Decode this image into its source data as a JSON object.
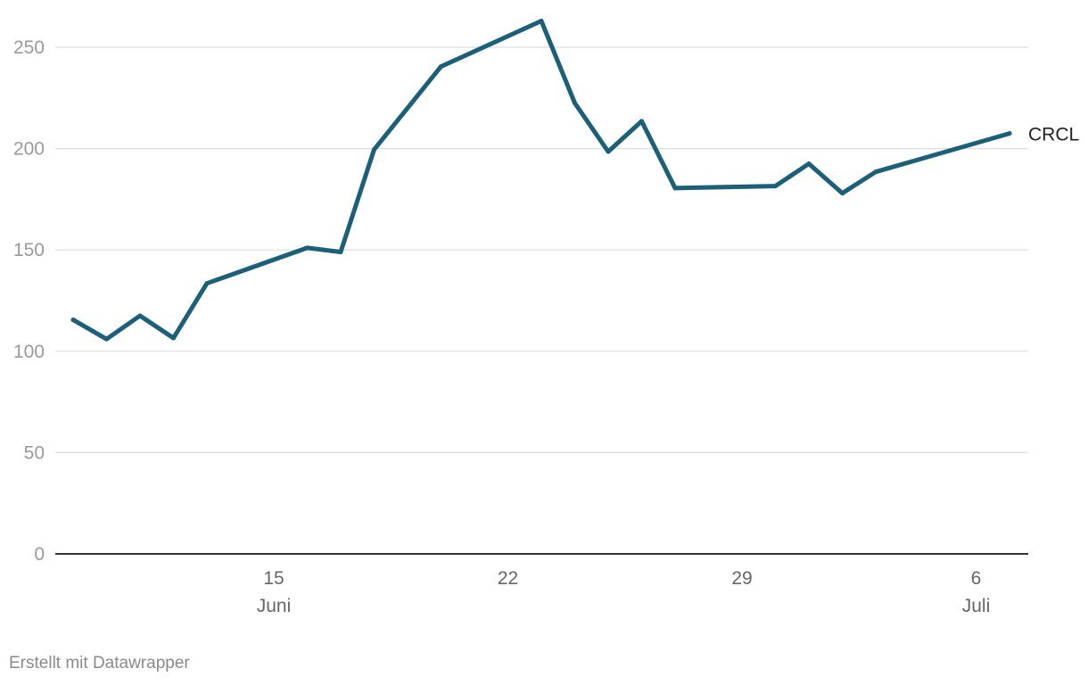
{
  "chart_data": {
    "type": "line",
    "xlabel": "",
    "ylabel": "",
    "ylim": [
      0,
      262
    ],
    "grid": true,
    "colors": {
      "line": "#1b6078"
    },
    "y_ticks": [
      {
        "value": 0,
        "label": "0"
      },
      {
        "value": 50,
        "label": "50"
      },
      {
        "value": 100,
        "label": "100"
      },
      {
        "value": 150,
        "label": "150"
      },
      {
        "value": 200,
        "label": "200"
      },
      {
        "value": 250,
        "label": "250"
      }
    ],
    "x_ticks": [
      {
        "date": "2025-06-15",
        "label": "15",
        "sublabel": "Juni"
      },
      {
        "date": "2025-06-22",
        "label": "22",
        "sublabel": ""
      },
      {
        "date": "2025-06-29",
        "label": "29",
        "sublabel": ""
      },
      {
        "date": "2025-07-06",
        "label": "6",
        "sublabel": "Juli"
      }
    ],
    "series": [
      {
        "name": "CRCL",
        "points": [
          {
            "date": "2025-06-09",
            "y": 115.5
          },
          {
            "date": "2025-06-10",
            "y": 106
          },
          {
            "date": "2025-06-11",
            "y": 117.5
          },
          {
            "date": "2025-06-12",
            "y": 106.5
          },
          {
            "date": "2025-06-13",
            "y": 133.5
          },
          {
            "date": "2025-06-16",
            "y": 151
          },
          {
            "date": "2025-06-17",
            "y": 149
          },
          {
            "date": "2025-06-18",
            "y": 199.5
          },
          {
            "date": "2025-06-20",
            "y": 240.5
          },
          {
            "date": "2025-06-23",
            "y": 263
          },
          {
            "date": "2025-06-24",
            "y": 222.5
          },
          {
            "date": "2025-06-25",
            "y": 198.5
          },
          {
            "date": "2025-06-26",
            "y": 213.5
          },
          {
            "date": "2025-06-27",
            "y": 180.5
          },
          {
            "date": "2025-06-30",
            "y": 181.5
          },
          {
            "date": "2025-07-01",
            "y": 192.5
          },
          {
            "date": "2025-07-02",
            "y": 178
          },
          {
            "date": "2025-07-03",
            "y": 188.5
          },
          {
            "date": "2025-07-07",
            "y": 207.5
          }
        ]
      }
    ]
  },
  "footer": {
    "credit": "Erstellt mit Datawrapper"
  }
}
